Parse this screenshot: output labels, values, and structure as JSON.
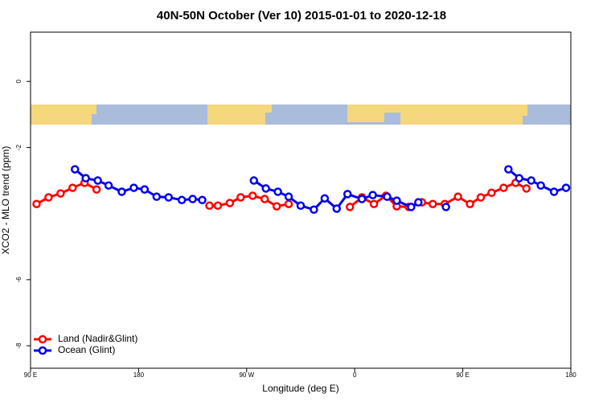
{
  "chart_data": {
    "type": "line",
    "title": "40N-50N October (Ver 10)   2015-01-01 to 2020-12-18",
    "xlabel": "Longitude (deg E)",
    "ylabel": "XCO2 - MLO trend (ppm)",
    "xlim": [
      90,
      540
    ],
    "xticks": [
      {
        "value": 90,
        "label": "90 E"
      },
      {
        "value": 180,
        "label": "180"
      },
      {
        "value": 270,
        "label": "90 W"
      },
      {
        "value": 360,
        "label": "0"
      },
      {
        "value": 450,
        "label": "90 E"
      },
      {
        "value": 540,
        "label": "180"
      }
    ],
    "ylim": [
      -8.68,
      1.49
    ],
    "yticks": [
      0,
      -2,
      -6,
      -8
    ],
    "legend": "bottom-left",
    "series": [
      {
        "name": "Land (Nadir&Glint)",
        "color": "#ff0000",
        "x": [
          95,
          105,
          115,
          125,
          135,
          145,
          null,
          239,
          246,
          256,
          265,
          275,
          285,
          295,
          305,
          null,
          356,
          366,
          376,
          386,
          395,
          405,
          416,
          425,
          435,
          446,
          456,
          465,
          474,
          484,
          494,
          503
        ],
        "values": [
          -3.71,
          -3.51,
          -3.39,
          -3.22,
          -3.07,
          -3.27,
          null,
          -3.76,
          -3.76,
          -3.68,
          -3.51,
          -3.46,
          -3.56,
          -3.78,
          -3.71,
          null,
          -3.8,
          -3.51,
          -3.71,
          -3.46,
          -3.78,
          -3.8,
          -3.66,
          -3.71,
          -3.71,
          -3.49,
          -3.71,
          -3.51,
          -3.37,
          -3.22,
          -3.07,
          -3.24
        ]
      },
      {
        "name": "Ocean (Glint)",
        "color": "#0000ee",
        "x": [
          127,
          136,
          146,
          155,
          166,
          176,
          185,
          195,
          205,
          216,
          225,
          233,
          null,
          276,
          286,
          296,
          305,
          315,
          326,
          335,
          345,
          354,
          366,
          375,
          387,
          395,
          407,
          413,
          null,
          436,
          null,
          488,
          497,
          507,
          515,
          526,
          536
        ],
        "values": [
          -2.66,
          -2.93,
          -3.0,
          -3.15,
          -3.34,
          -3.22,
          -3.27,
          -3.49,
          -3.51,
          -3.59,
          -3.56,
          -3.59,
          null,
          -3.0,
          -3.24,
          -3.34,
          -3.49,
          -3.76,
          -3.88,
          -3.54,
          -3.85,
          -3.41,
          -3.56,
          -3.44,
          -3.49,
          -3.61,
          -3.8,
          -3.66,
          null,
          -3.8,
          null,
          -2.66,
          -2.93,
          -3.0,
          -3.15,
          -3.34,
          -3.22
        ]
      }
    ]
  }
}
